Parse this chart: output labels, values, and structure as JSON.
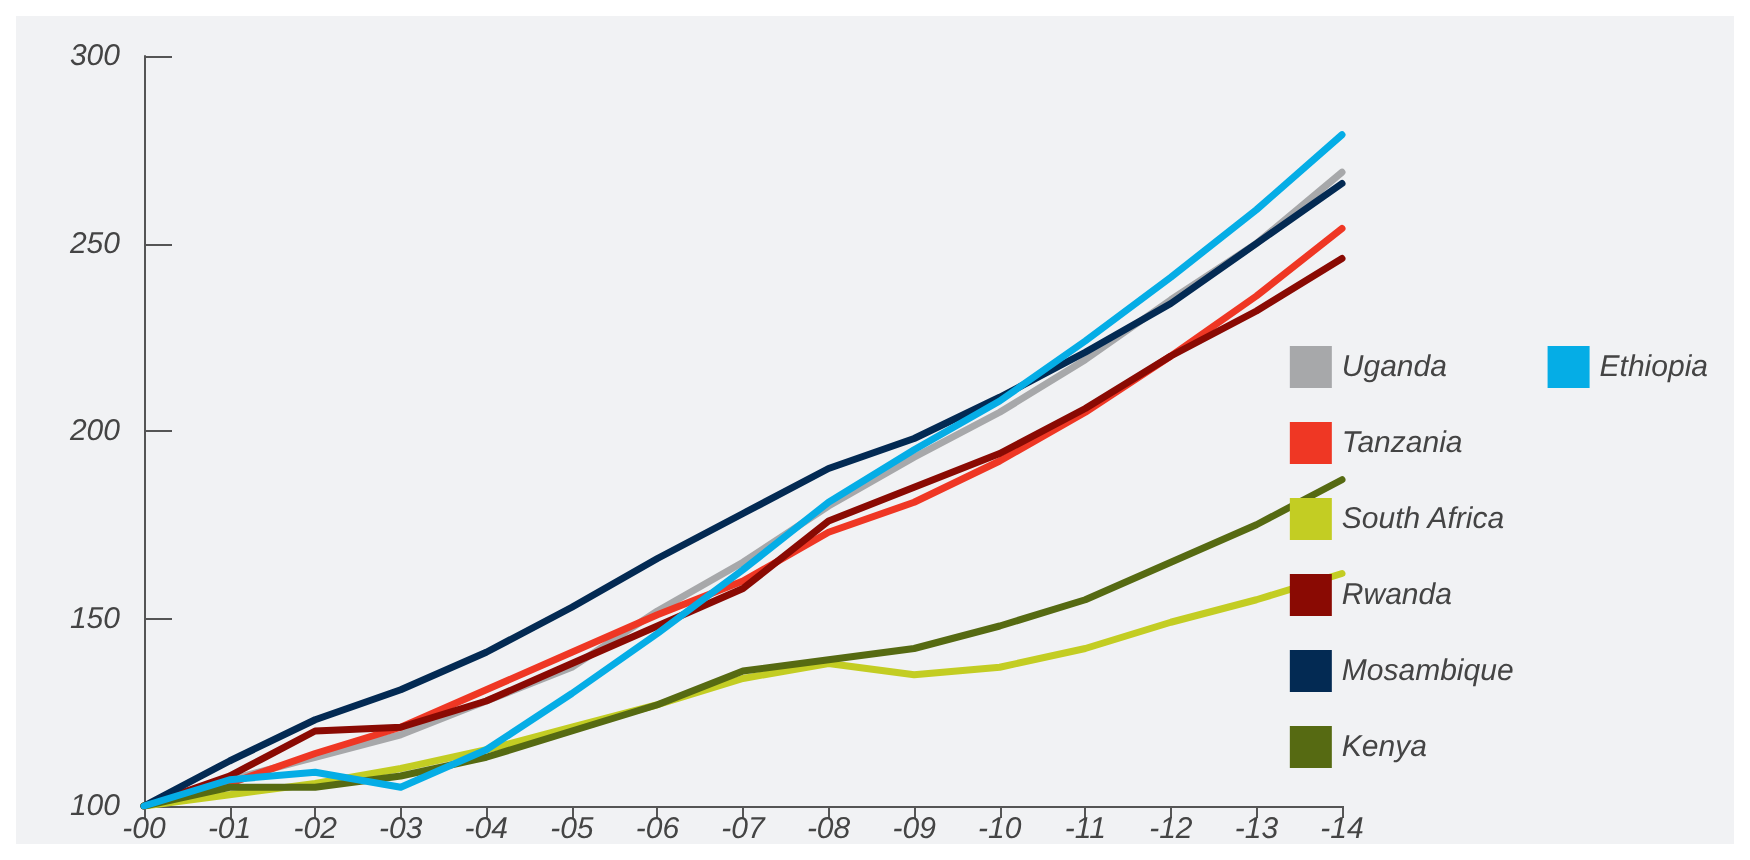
{
  "chart_data": {
    "type": "line",
    "categories": [
      "-00",
      "-01",
      "-02",
      "-03",
      "-04",
      "-05",
      "-06",
      "-07",
      "-08",
      "-09",
      "-10",
      "-11",
      "-12",
      "-13",
      "-14"
    ],
    "ylim": [
      100,
      300
    ],
    "yticks": [
      100,
      150,
      200,
      250,
      300
    ],
    "grid": false,
    "legend": "right",
    "marker": "none",
    "line_style": "solid",
    "series": [
      {
        "name": "Uganda",
        "color": "#a7a8aa",
        "values": [
          100,
          107,
          113,
          119,
          128,
          137,
          152,
          165,
          180,
          193,
          205,
          219,
          235,
          250,
          269
        ]
      },
      {
        "name": "Tanzania",
        "color": "#ef3724",
        "values": [
          100,
          106,
          114,
          121,
          131,
          141,
          151,
          160,
          173,
          181,
          192,
          205,
          220,
          236,
          254
        ]
      },
      {
        "name": "South Africa",
        "color": "#c3cd23",
        "values": [
          100,
          103,
          106,
          110,
          115,
          121,
          127,
          134,
          138,
          135,
          137,
          142,
          149,
          155,
          162
        ]
      },
      {
        "name": "Rwanda",
        "color": "#8a0a03",
        "values": [
          100,
          108,
          120,
          121,
          128,
          138,
          148,
          158,
          176,
          185,
          194,
          206,
          220,
          232,
          246
        ]
      },
      {
        "name": "Mosambique",
        "color": "#032a53",
        "values": [
          100,
          112,
          123,
          131,
          141,
          153,
          166,
          178,
          190,
          198,
          209,
          221,
          234,
          250,
          266
        ]
      },
      {
        "name": "Kenya",
        "color": "#566a12",
        "values": [
          100,
          105,
          105,
          108,
          113,
          120,
          127,
          136,
          139,
          142,
          148,
          155,
          165,
          175,
          187
        ]
      },
      {
        "name": "Ethiopia",
        "color": "#05ade6",
        "values": [
          100,
          107,
          109,
          105,
          115,
          130,
          146,
          163,
          181,
          195,
          208,
          224,
          241,
          259,
          279
        ]
      }
    ]
  }
}
